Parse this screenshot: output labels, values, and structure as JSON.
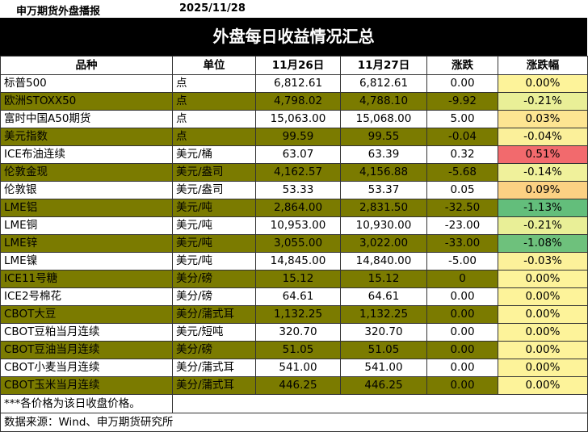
{
  "header": {
    "source": "申万期货外盘播报",
    "date": "2025/11/28"
  },
  "title": "外盘每日收益情况汇总",
  "columns": [
    "品种",
    "单位",
    "11月26日",
    "11月27日",
    "涨跌",
    "涨跌幅"
  ],
  "rows": [
    {
      "name": "标普500",
      "unit": "点",
      "d1": "6,812.61",
      "d2": "6,812.61",
      "chg": "0.00",
      "pct": "0.00%",
      "pct_color": "#fdf39a",
      "band": "plain"
    },
    {
      "name": "欧洲STOXX50",
      "unit": "点",
      "d1": "4,798.02",
      "d2": "4,788.10",
      "chg": "-9.92",
      "pct": "-0.21%",
      "pct_color": "#e9ef97",
      "band": "olive"
    },
    {
      "name": "富时中国A50期货",
      "unit": "点",
      "d1": "15,063.00",
      "d2": "15,068.00",
      "chg": "5.00",
      "pct": "0.03%",
      "pct_color": "#fde592",
      "band": "plain"
    },
    {
      "name": "美元指数",
      "unit": "点",
      "d1": "99.59",
      "d2": "99.55",
      "chg": "-0.04",
      "pct": "-0.04%",
      "pct_color": "#fbf09a",
      "band": "olive"
    },
    {
      "name": "ICE布油连续",
      "unit": "美元/桶",
      "d1": "63.07",
      "d2": "63.39",
      "chg": "0.32",
      "pct": "0.51%",
      "pct_color": "#f26a6d",
      "band": "plain"
    },
    {
      "name": "伦敦金现",
      "unit": "美元/盎司",
      "d1": "4,162.57",
      "d2": "4,156.88",
      "chg": "-5.68",
      "pct": "-0.14%",
      "pct_color": "#f0f19b",
      "band": "olive"
    },
    {
      "name": "伦敦银",
      "unit": "美元/盎司",
      "d1": "53.33",
      "d2": "53.37",
      "chg": "0.05",
      "pct": "0.09%",
      "pct_color": "#fcd183",
      "band": "plain"
    },
    {
      "name": "LME铝",
      "unit": "美元/吨",
      "d1": "2,864.00",
      "d2": "2,831.50",
      "chg": "-32.50",
      "pct": "-1.13%",
      "pct_color": "#63be7b",
      "band": "olive"
    },
    {
      "name": "LME铜",
      "unit": "美元/吨",
      "d1": "10,953.00",
      "d2": "10,930.00",
      "chg": "-23.00",
      "pct": "-0.21%",
      "pct_color": "#e9ef97",
      "band": "plain"
    },
    {
      "name": "LME锌",
      "unit": "美元/吨",
      "d1": "3,055.00",
      "d2": "3,022.00",
      "chg": "-33.00",
      "pct": "-1.08%",
      "pct_color": "#6ec17c",
      "band": "olive"
    },
    {
      "name": "LME镍",
      "unit": "美元/吨",
      "d1": "14,845.00",
      "d2": "14,840.00",
      "chg": "-5.00",
      "pct": "-0.03%",
      "pct_color": "#fcf19a",
      "band": "plain"
    },
    {
      "name": "ICE11号糖",
      "unit": "美分/磅",
      "d1": "15.12",
      "d2": "15.12",
      "chg": "0",
      "pct": "0.00%",
      "pct_color": "#fdf39a",
      "band": "olive"
    },
    {
      "name": "ICE2号棉花",
      "unit": "美分/磅",
      "d1": "64.61",
      "d2": "64.61",
      "chg": "0.00",
      "pct": "0.00%",
      "pct_color": "#fdf39a",
      "band": "plain"
    },
    {
      "name": "CBOT大豆",
      "unit": "美分/蒲式耳",
      "d1": "1,132.25",
      "d2": "1,132.25",
      "chg": "0.00",
      "pct": "0.00%",
      "pct_color": "#fdf39a",
      "band": "olive"
    },
    {
      "name": "CBOT豆粕当月连续",
      "unit": "美元/短吨",
      "d1": "320.70",
      "d2": "320.70",
      "chg": "0.00",
      "pct": "0.00%",
      "pct_color": "#fdf39a",
      "band": "plain"
    },
    {
      "name": "CBOT豆油当月连续",
      "unit": "美分/磅",
      "d1": "51.05",
      "d2": "51.05",
      "chg": "0.00",
      "pct": "0.00%",
      "pct_color": "#fdf39a",
      "band": "olive"
    },
    {
      "name": "CBOT小麦当月连续",
      "unit": "美分/蒲式耳",
      "d1": "541.00",
      "d2": "541.00",
      "chg": "0.00",
      "pct": "0.00%",
      "pct_color": "#fdf39a",
      "band": "plain"
    },
    {
      "name": "CBOT玉米当月连续",
      "unit": "美分/蒲式耳",
      "d1": "446.25",
      "d2": "446.25",
      "chg": "0.00",
      "pct": "0.00%",
      "pct_color": "#fdf39a",
      "band": "olive"
    }
  ],
  "footnote": "***各价格为该日收盘价格。",
  "source_line": "数据来源：Wind、申万期货研究所"
}
